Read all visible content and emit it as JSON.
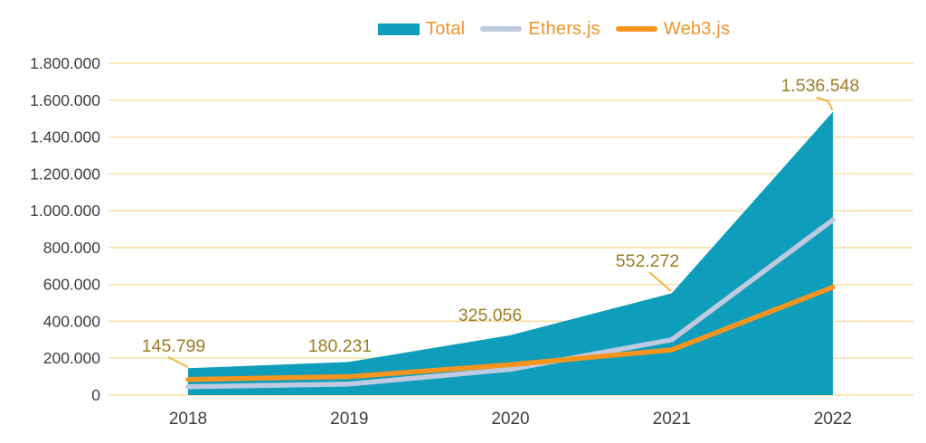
{
  "legend": {
    "items": [
      {
        "label": "Total",
        "color": "#0E9DBB",
        "swatch": "rect"
      },
      {
        "label": "Ethers.js",
        "color": "#BFC9E0",
        "swatch": "line"
      },
      {
        "label": "Web3.js",
        "color": "#F7941D",
        "swatch": "line"
      }
    ]
  },
  "chart_data": {
    "type": "area",
    "x": [
      2018,
      2019,
      2020,
      2021,
      2022
    ],
    "series": [
      {
        "name": "Total",
        "type": "area",
        "color": "#0E9DBB",
        "values": [
          145799,
          180231,
          325056,
          552272,
          1536548
        ]
      },
      {
        "name": "Ethers.js",
        "type": "line",
        "color": "#BFC9E0",
        "values": [
          45000,
          60000,
          140000,
          300000,
          950000
        ]
      },
      {
        "name": "Web3.js",
        "type": "line",
        "color": "#F7941D",
        "values": [
          85000,
          100000,
          165000,
          245000,
          585000
        ]
      }
    ],
    "annotations": [
      {
        "x": 2018,
        "label": "145.799"
      },
      {
        "x": 2019,
        "label": "180.231"
      },
      {
        "x": 2020,
        "label": "325.056"
      },
      {
        "x": 2021,
        "label": "552.272"
      },
      {
        "x": 2022,
        "label": "1.536.548"
      }
    ],
    "ylim": [
      0,
      1800000
    ],
    "y_tick_step": 200000,
    "y_tick_labels": [
      "0",
      "200.000",
      "400.000",
      "600.000",
      "800.000",
      "1.000.000",
      "1.200.000",
      "1.400.000",
      "1.600.000",
      "1.800.000"
    ],
    "grid": true,
    "legend_position": "top",
    "style": {
      "grid_color": "#FBE2AC",
      "tick_color": "#3E3E3E",
      "annotation_color": "#9E7D22",
      "leader_color": "#F2B544",
      "legend_text_color": "#F0952B",
      "background": "#FFFFFF"
    }
  }
}
